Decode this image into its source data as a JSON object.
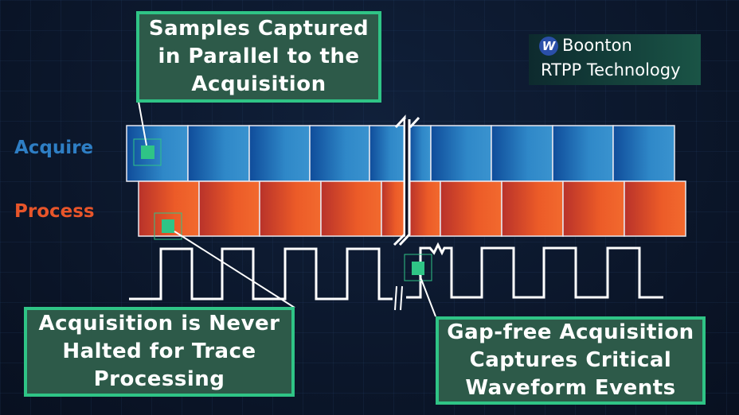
{
  "labels": {
    "acquire": "Acquire",
    "process": "Process"
  },
  "callouts": {
    "top": "Samples Captured in Parallel to the Acquisition",
    "bottom_left": "Acquisition is Never Halted for Trace Processing",
    "bottom_right": "Gap-free Acquisition Captures Critical Waveform Events"
  },
  "brand": {
    "logo_letter": "W",
    "name": "Boonton",
    "tagline": "RTPP Technology"
  },
  "colors": {
    "acquire": "#2f7fc0",
    "process": "#e8552a",
    "accent": "#2fc486",
    "callout_fill": "#2d5a49"
  }
}
